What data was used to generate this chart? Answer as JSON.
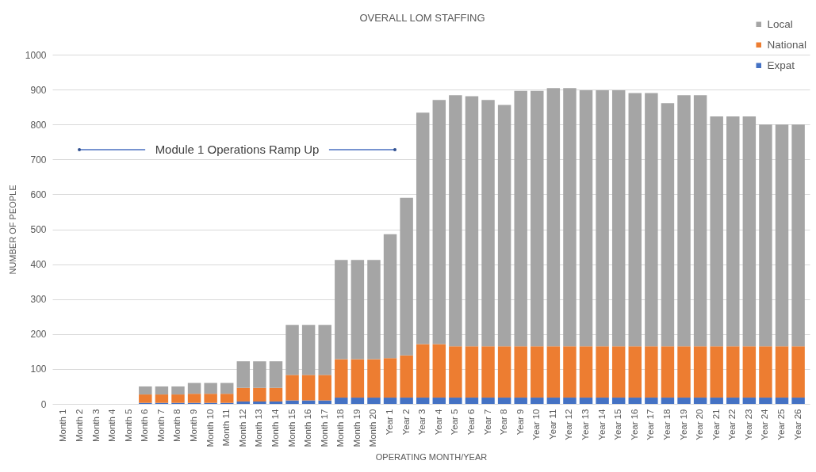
{
  "chart_data": {
    "type": "bar",
    "title": "OVERALL LOM STAFFING",
    "xlabel": "OPERATING MONTH/YEAR",
    "ylabel": "NUMBER OF PEOPLE",
    "categories": [
      "Month 1",
      "Month 2",
      "Month 3",
      "Month 4",
      "Month 5",
      "Month 6",
      "Month 7",
      "Month 8",
      "Month 9",
      "Month 10",
      "Month 11",
      "Month 12",
      "Month 13",
      "Month 14",
      "Month 15",
      "Month 16",
      "Month 17",
      "Month 18",
      "Month 19",
      "Month 20",
      "Year 1",
      "Year 2",
      "Year 3",
      "Year 4",
      "Year 5",
      "Year 6",
      "Year 7",
      "Year 8",
      "Year 9",
      "Year 10",
      "Year 11",
      "Year 12",
      "Year 13",
      "Year 14",
      "Year 15",
      "Year 16",
      "Year 17",
      "Year 18",
      "Year 19",
      "Year 20",
      "Year 21",
      "Year 22",
      "Year 23",
      "Year 24",
      "Year 25",
      "Year 26"
    ],
    "stacked": true,
    "series": [
      {
        "name": "Expat",
        "color": "#4472c4",
        "values": [
          0,
          0,
          0,
          0,
          0,
          3,
          3,
          3,
          3,
          3,
          3,
          7,
          7,
          7,
          10,
          10,
          10,
          18,
          18,
          18,
          18,
          18,
          18,
          18,
          18,
          18,
          18,
          18,
          18,
          18,
          18,
          18,
          18,
          18,
          18,
          18,
          18,
          18,
          18,
          18,
          18,
          18,
          18,
          18,
          18,
          18
        ]
      },
      {
        "name": "National",
        "color": "#ed7d31",
        "values": [
          0,
          0,
          0,
          0,
          0,
          24,
          24,
          24,
          26,
          26,
          26,
          39,
          39,
          39,
          73,
          73,
          73,
          110,
          110,
          110,
          113,
          121,
          153,
          153,
          147,
          147,
          147,
          147,
          147,
          147,
          147,
          147,
          147,
          147,
          147,
          147,
          147,
          147,
          147,
          147,
          147,
          147,
          147,
          147,
          147,
          147
        ]
      },
      {
        "name": "Local",
        "color": "#a5a5a5",
        "values": [
          0,
          0,
          0,
          0,
          0,
          23,
          23,
          23,
          31,
          31,
          31,
          76,
          76,
          76,
          143,
          143,
          143,
          284,
          284,
          284,
          355,
          451,
          663,
          699,
          719,
          716,
          705,
          691,
          731,
          731,
          739,
          739,
          733,
          733,
          733,
          725,
          725,
          696,
          719,
          719,
          658,
          658,
          658,
          635,
          635,
          635
        ]
      }
    ],
    "ylim": [
      0,
      1000
    ],
    "yticks": [
      0,
      100,
      200,
      300,
      400,
      500,
      600,
      700,
      800,
      900,
      1000
    ],
    "grid": "y",
    "legend": "top right",
    "annotations": [
      "Module 1 Operations Ramp Up"
    ]
  }
}
